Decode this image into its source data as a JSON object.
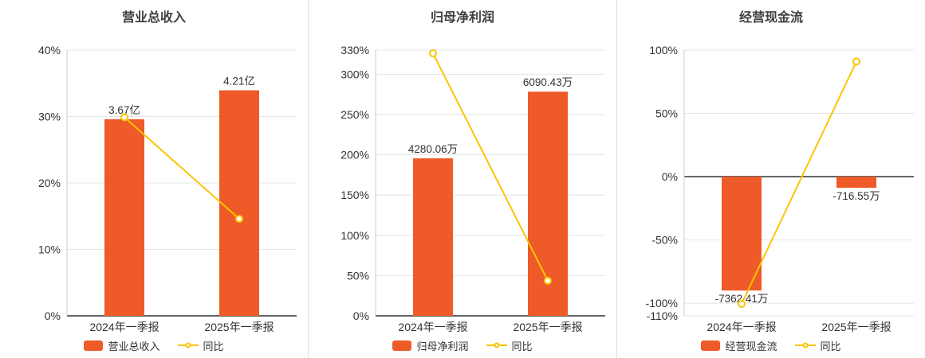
{
  "page": {
    "background": "#ffffff",
    "divider_color": "#dcdcdc"
  },
  "chart_data": [
    {
      "type": "bar-line",
      "title": "营业总收入",
      "categories": [
        "2024年一季报",
        "2025年一季报"
      ],
      "ylim": [
        0,
        40
      ],
      "yticks": {
        "values": [
          0,
          10,
          20,
          30,
          40
        ],
        "labels": [
          "0%",
          "10%",
          "20%",
          "30%",
          "40%"
        ]
      },
      "bar_series": {
        "name": "营业总收入",
        "color": "#ee5a28",
        "value_labels": [
          "3.67亿",
          "4.21亿"
        ],
        "plot_values": [
          29.6,
          33.95
        ]
      },
      "line_series": {
        "name": "同比",
        "color": "#fdc300",
        "values": [
          29.9,
          14.6
        ]
      },
      "legend_position": "bottom",
      "grid": true
    },
    {
      "type": "bar-line",
      "title": "归母净利润",
      "categories": [
        "2024年一季报",
        "2025年一季报"
      ],
      "ylim": [
        0,
        330
      ],
      "yticks": {
        "values": [
          0,
          50,
          100,
          150,
          200,
          250,
          300,
          330
        ],
        "labels": [
          "0%",
          "50%",
          "100%",
          "150%",
          "200%",
          "250%",
          "300%",
          "330%"
        ]
      },
      "bar_series": {
        "name": "归母净利润",
        "color": "#ee5a28",
        "value_labels": [
          "4280.06万",
          "6090.43万"
        ],
        "plot_values": [
          195.6,
          278.4
        ]
      },
      "line_series": {
        "name": "同比",
        "color": "#fdc300",
        "values": [
          326,
          43.6
        ]
      },
      "legend_position": "bottom",
      "grid": true
    },
    {
      "type": "bar-line",
      "title": "经营现金流",
      "categories": [
        "2024年一季报",
        "2025年一季报"
      ],
      "ylim": [
        -110,
        100
      ],
      "yticks": {
        "values": [
          -110,
          -100,
          -50,
          0,
          50,
          100
        ],
        "labels": [
          "-110%",
          "-100%",
          "-50%",
          "0%",
          "50%",
          "100%"
        ]
      },
      "bar_series": {
        "name": "经营现金流",
        "color": "#ee5a28",
        "value_labels": [
          "-7362.41万",
          "-716.55万"
        ],
        "plot_values": [
          -90,
          -8.8
        ]
      },
      "line_series": {
        "name": "同比",
        "color": "#fdc300",
        "values": [
          -100.6,
          91
        ]
      },
      "legend_position": "bottom",
      "grid": true
    }
  ]
}
